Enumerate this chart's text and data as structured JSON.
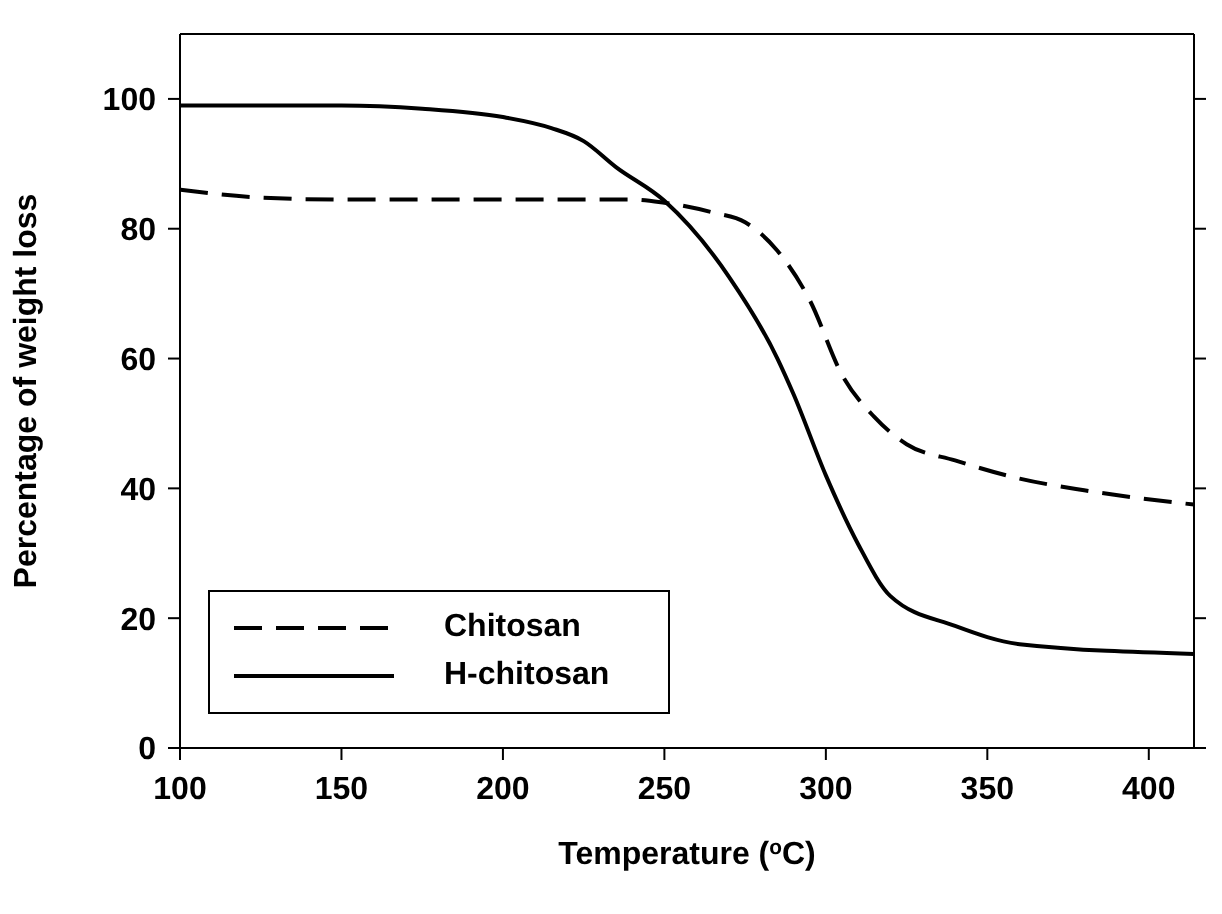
{
  "chart_data": {
    "type": "line",
    "xlabel": "Temperature ($^{o}$C)",
    "ylabel": "Percentage of weight loss",
    "xlim": [
      100,
      414
    ],
    "xticks": [
      100,
      150,
      200,
      250,
      300,
      350,
      400
    ],
    "ylim": [
      0,
      110
    ],
    "yticks": [
      0,
      20,
      40,
      60,
      80,
      100
    ],
    "legend": "bottom left",
    "marker": "none",
    "series": [
      {
        "name": "Chitosan",
        "color": "#000000",
        "line_style": "dashed",
        "x": [
          100,
          125,
          150,
          200,
          240,
          250,
          265,
          275,
          285,
          295,
          305,
          315,
          325,
          340,
          360,
          380,
          414
        ],
        "values": [
          86,
          84.8,
          84.5,
          84.5,
          84.5,
          84,
          82.5,
          81,
          76.6,
          69,
          57.5,
          51,
          46.8,
          44.3,
          41.5,
          39.7,
          37.5
        ]
      },
      {
        "name": "H-chitosan",
        "color": "#000000",
        "line_style": "solid",
        "x": [
          100,
          150,
          175,
          200,
          215,
          225,
          235,
          250,
          270,
          285,
          290,
          300,
          310,
          320,
          340,
          360,
          414
        ],
        "values": [
          99,
          99,
          98.5,
          97.2,
          95.5,
          93.5,
          89.5,
          84.3,
          72.6,
          60,
          54.5,
          42,
          31.4,
          23.4,
          18.8,
          16,
          14.5
        ]
      }
    ]
  }
}
